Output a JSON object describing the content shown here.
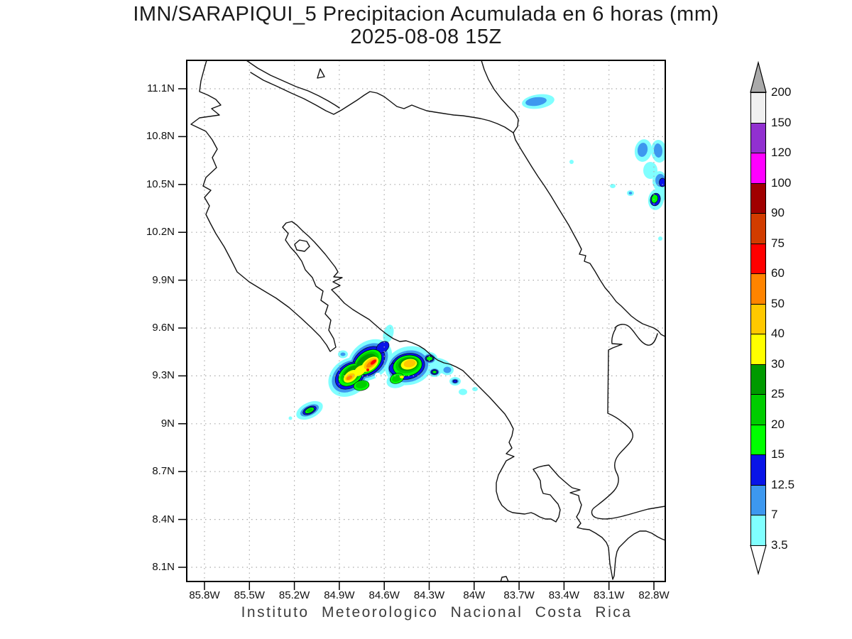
{
  "title": {
    "line1": "IMN/SARAPIQUI_5 Precipitacion Acumulada en 6 horas (mm)",
    "line2": "2025-08-08 15Z"
  },
  "footer": "Instituto Meteorologico Nacional Costa Rica",
  "axes": {
    "y_labels": [
      "11.1N",
      "10.8N",
      "10.5N",
      "10.2N",
      "9.9N",
      "9.6N",
      "9.3N",
      "9N",
      "8.7N",
      "8.4N",
      "8.1N"
    ],
    "x_labels": [
      "85.8W",
      "85.5W",
      "85.2W",
      "84.9W",
      "84.6W",
      "84.3W",
      "84W",
      "83.7W",
      "83.4W",
      "83.1W",
      "82.8W"
    ]
  },
  "colorbar": {
    "unit": "mm",
    "labels": [
      "200",
      "150",
      "120",
      "100",
      "90",
      "75",
      "60",
      "50",
      "40",
      "30",
      "25",
      "20",
      "15",
      "12.5",
      "7",
      "3.5"
    ],
    "band_colors_top_to_bottom": [
      "#f0f0f0",
      "#9130d0",
      "#ff00ff",
      "#a00000",
      "#d23c00",
      "#ff0000",
      "#ff8400",
      "#ffc800",
      "#ffff00",
      "#009a00",
      "#00cd00",
      "#00ff00",
      "#0814e8",
      "#3d98ef",
      "#80ffff"
    ],
    "top_arrow_color": "#aaaaaa",
    "bottom_arrow_color": "#ffffff"
  }
}
